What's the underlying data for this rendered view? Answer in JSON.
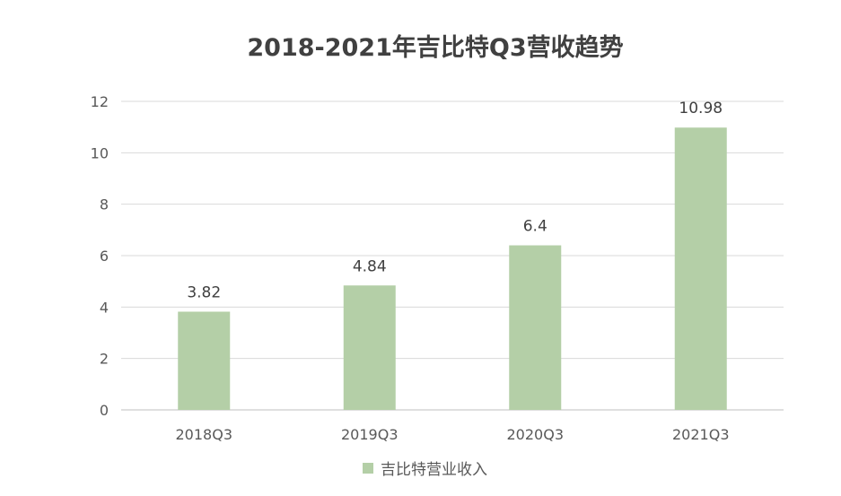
{
  "chart_data": {
    "type": "bar",
    "title": "2018-2021年吉比特Q3营收趋势",
    "categories": [
      "2018Q3",
      "2019Q3",
      "2020Q3",
      "2021Q3"
    ],
    "series": [
      {
        "name": "吉比特营业收入",
        "values": [
          3.82,
          4.84,
          6.4,
          10.98
        ],
        "color": "#b4cfa7"
      }
    ],
    "data_labels": [
      "3.82",
      "4.84",
      "6.4",
      "10.98"
    ],
    "ylim": [
      0,
      12
    ],
    "yticks": [
      0,
      2,
      4,
      6,
      8,
      10,
      12
    ],
    "ytick_labels": [
      "0",
      "2",
      "4",
      "6",
      "8",
      "10",
      "12"
    ],
    "xlabel": "",
    "ylabel": "",
    "grid": true,
    "legend_position": "bottom"
  }
}
